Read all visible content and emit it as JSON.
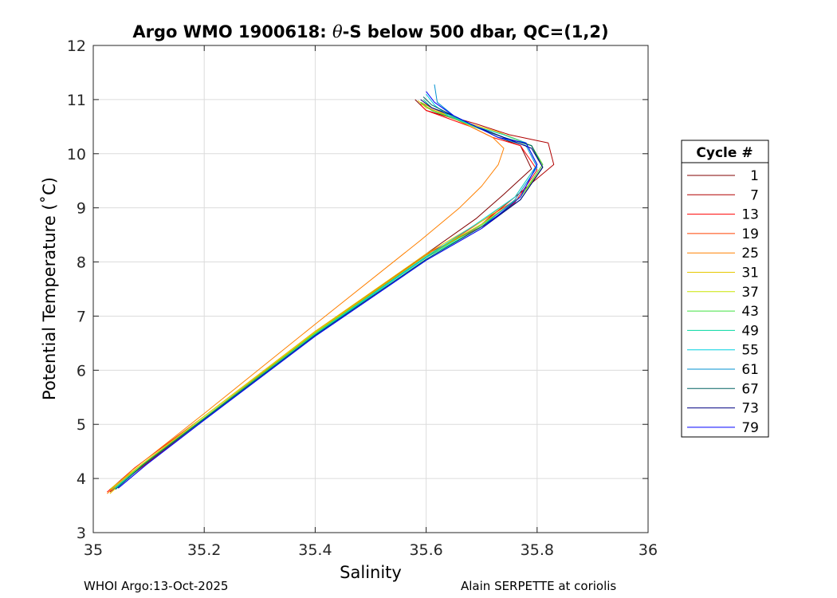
{
  "chart_data": {
    "type": "line",
    "title": "Argo WMO 1900618: θ-S below 500 dbar,  QC=(1,2)",
    "title_parts": {
      "prefix": "Argo WMO 1900618: ",
      "symbol": "θ",
      "suffix": "-S below 500 dbar,  QC=(1,2)"
    },
    "xlabel": "Salinity",
    "ylabel": "Potential Temperature (˚C)",
    "xlim": [
      35,
      36
    ],
    "ylim": [
      3,
      12
    ],
    "xticks": [
      "35",
      "35.2",
      "35.4",
      "35.6",
      "35.8",
      "36"
    ],
    "yticks": [
      "3",
      "4",
      "5",
      "6",
      "7",
      "8",
      "9",
      "10",
      "11",
      "12"
    ],
    "grid": true,
    "legend": {
      "title": "Cycle #",
      "placement": "right"
    },
    "series": [
      {
        "name": "1",
        "color": "#800000",
        "x": [
          35.03,
          35.08,
          35.2,
          35.4,
          35.6,
          35.69,
          35.74,
          35.79,
          35.77,
          35.73,
          35.69,
          35.65,
          35.6,
          35.58
        ],
        "y": [
          3.8,
          4.2,
          5.1,
          6.7,
          8.15,
          8.8,
          9.25,
          9.72,
          10.15,
          10.3,
          10.5,
          10.65,
          10.8,
          11.0
        ]
      },
      {
        "name": "7",
        "color": "#b00000",
        "x": [
          35.03,
          35.08,
          35.2,
          35.4,
          35.6,
          35.7,
          35.76,
          35.83,
          35.82,
          35.75,
          35.69,
          35.64,
          35.61,
          35.59
        ],
        "y": [
          3.75,
          4.15,
          5.1,
          6.7,
          8.1,
          8.7,
          9.2,
          9.8,
          10.2,
          10.35,
          10.55,
          10.7,
          10.85,
          10.95
        ]
      },
      {
        "name": "13",
        "color": "#ff0000",
        "x": [
          35.025,
          35.075,
          35.2,
          35.4,
          35.61,
          35.71,
          35.76,
          35.8,
          35.77,
          35.72,
          35.68,
          35.64,
          35.6,
          35.59
        ],
        "y": [
          3.75,
          4.2,
          5.15,
          6.72,
          8.2,
          8.7,
          9.1,
          9.7,
          10.15,
          10.3,
          10.5,
          10.65,
          10.8,
          10.9
        ]
      },
      {
        "name": "19",
        "color": "#ff4000",
        "x": [
          35.03,
          35.08,
          35.2,
          35.4,
          35.61,
          35.7,
          35.77,
          35.81,
          35.79,
          35.74,
          35.69,
          35.64,
          35.61,
          35.59
        ],
        "y": [
          3.78,
          4.2,
          5.12,
          6.7,
          8.15,
          8.75,
          9.2,
          9.8,
          10.15,
          10.3,
          10.5,
          10.68,
          10.82,
          10.92
        ]
      },
      {
        "name": "25",
        "color": "#ff8000",
        "x": [
          35.025,
          35.07,
          35.2,
          35.4,
          35.59,
          35.66,
          35.7,
          35.73,
          35.74,
          35.72,
          35.68,
          35.64,
          35.61,
          35.59
        ],
        "y": [
          3.72,
          4.15,
          5.2,
          6.85,
          8.4,
          9.0,
          9.4,
          9.8,
          10.1,
          10.3,
          10.5,
          10.7,
          10.85,
          10.95
        ]
      },
      {
        "name": "31",
        "color": "#e6c800",
        "x": [
          35.03,
          35.08,
          35.2,
          35.4,
          35.6,
          35.7,
          35.76,
          35.8,
          35.78,
          35.73,
          35.68,
          35.64,
          35.6,
          35.585
        ],
        "y": [
          3.72,
          4.2,
          5.15,
          6.72,
          8.15,
          8.75,
          9.2,
          9.8,
          10.2,
          10.4,
          10.55,
          10.7,
          10.85,
          10.98
        ]
      },
      {
        "name": "37",
        "color": "#c8e600",
        "x": [
          35.03,
          35.08,
          35.2,
          35.4,
          35.6,
          35.7,
          35.77,
          35.81,
          35.79,
          35.74,
          35.69,
          35.65,
          35.61,
          35.59
        ],
        "y": [
          3.8,
          4.2,
          5.15,
          6.7,
          8.12,
          8.7,
          9.2,
          9.75,
          10.15,
          10.35,
          10.5,
          10.65,
          10.8,
          10.95
        ]
      },
      {
        "name": "43",
        "color": "#40e040",
        "x": [
          35.035,
          35.085,
          35.2,
          35.4,
          35.6,
          35.7,
          35.77,
          35.81,
          35.79,
          35.74,
          35.69,
          35.65,
          35.61,
          35.59
        ],
        "y": [
          3.8,
          4.22,
          5.12,
          6.68,
          8.1,
          8.68,
          9.2,
          9.8,
          10.15,
          10.3,
          10.48,
          10.65,
          10.8,
          10.95
        ]
      },
      {
        "name": "49",
        "color": "#00d8a0",
        "x": [
          35.04,
          35.09,
          35.2,
          35.4,
          35.6,
          35.7,
          35.77,
          35.81,
          35.79,
          35.74,
          35.69,
          35.65,
          35.61,
          35.595
        ],
        "y": [
          3.82,
          4.25,
          5.1,
          6.66,
          8.08,
          8.65,
          9.15,
          9.75,
          10.15,
          10.3,
          10.5,
          10.68,
          10.85,
          11.0
        ]
      },
      {
        "name": "55",
        "color": "#00d0e0",
        "x": [
          35.04,
          35.09,
          35.2,
          35.4,
          35.6,
          35.69,
          35.76,
          35.8,
          35.78,
          35.74,
          35.69,
          35.64,
          35.615,
          35.6
        ],
        "y": [
          3.82,
          4.25,
          5.1,
          6.66,
          8.1,
          8.7,
          9.2,
          9.8,
          10.2,
          10.35,
          10.5,
          10.7,
          10.9,
          11.1
        ]
      },
      {
        "name": "61",
        "color": "#0090d0",
        "x": [
          35.04,
          35.09,
          35.2,
          35.4,
          35.6,
          35.7,
          35.76,
          35.8,
          35.78,
          35.73,
          35.69,
          35.65,
          35.62,
          35.615
        ],
        "y": [
          3.8,
          4.25,
          5.1,
          6.65,
          8.05,
          8.65,
          9.15,
          9.75,
          10.15,
          10.3,
          10.5,
          10.7,
          10.95,
          11.28
        ]
      },
      {
        "name": "67",
        "color": "#006060",
        "x": [
          35.04,
          35.09,
          35.2,
          35.4,
          35.6,
          35.7,
          35.77,
          35.81,
          35.79,
          35.74,
          35.69,
          35.65,
          35.61,
          35.595
        ],
        "y": [
          3.8,
          4.25,
          5.1,
          6.65,
          8.05,
          8.65,
          9.15,
          9.75,
          10.15,
          10.3,
          10.5,
          10.7,
          10.9,
          11.05
        ]
      },
      {
        "name": "73",
        "color": "#000080",
        "x": [
          35.045,
          35.095,
          35.2,
          35.4,
          35.6,
          35.7,
          35.77,
          35.81,
          35.79,
          35.74,
          35.69,
          35.65,
          35.61,
          35.59
        ],
        "y": [
          3.82,
          4.25,
          5.08,
          6.63,
          8.03,
          8.62,
          9.15,
          9.75,
          10.1,
          10.3,
          10.5,
          10.7,
          10.85,
          11.0
        ]
      },
      {
        "name": "79",
        "color": "#0000ff",
        "x": [
          35.045,
          35.095,
          35.2,
          35.4,
          35.6,
          35.7,
          35.77,
          35.8,
          35.78,
          35.73,
          35.69,
          35.65,
          35.615,
          35.6
        ],
        "y": [
          3.82,
          4.25,
          5.08,
          6.63,
          8.03,
          8.62,
          9.2,
          9.8,
          10.2,
          10.3,
          10.5,
          10.7,
          10.95,
          11.15
        ]
      }
    ]
  },
  "footer": {
    "left": "WHOI Argo:13-Oct-2025",
    "right": "Alain SERPETTE at coriolis"
  }
}
